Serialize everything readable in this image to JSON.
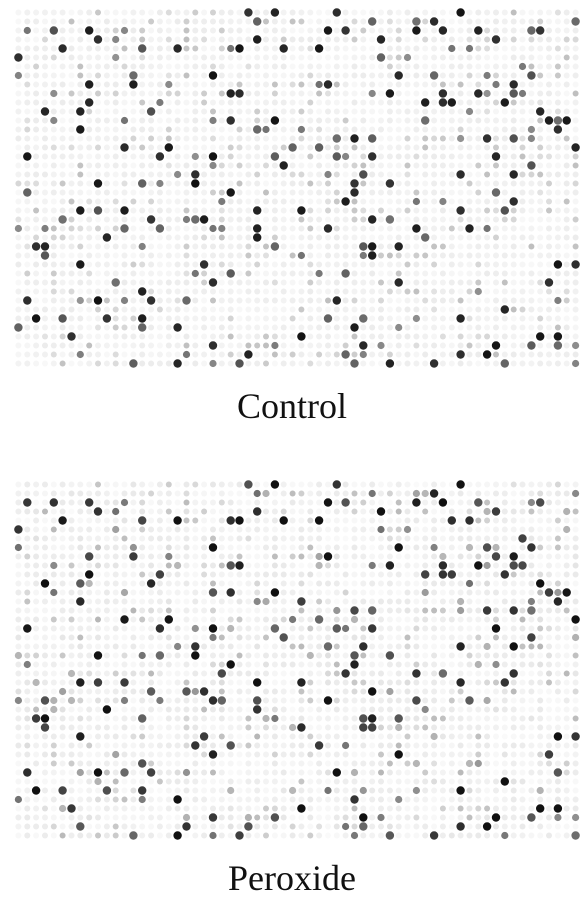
{
  "panels": [
    {
      "id": "control",
      "caption": "Control"
    },
    {
      "id": "peroxide",
      "caption": "Peroxide"
    }
  ],
  "colors": {
    "background": "#ffffff",
    "dot_dark": "#111111",
    "dot_light": "#9a9a9a",
    "caption": "#111111"
  }
}
